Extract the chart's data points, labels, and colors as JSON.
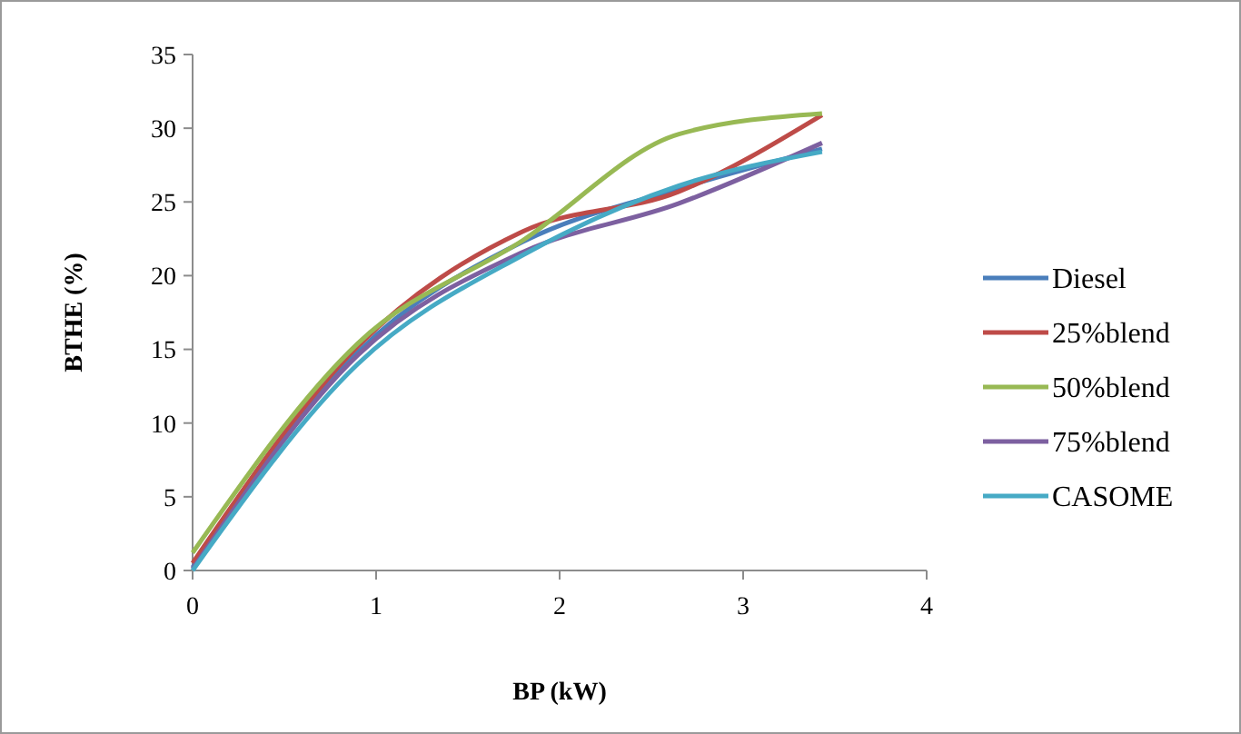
{
  "chart_data": {
    "type": "line",
    "xlabel": "BP (kW)",
    "ylabel": "BTHE (%)",
    "x": [
      0,
      0.9,
      1.8,
      2.65,
      3.43
    ],
    "xlim": [
      0,
      4
    ],
    "xticks": [
      0,
      1,
      2,
      3,
      4
    ],
    "ylim": [
      0,
      35
    ],
    "yticks": [
      0,
      5,
      10,
      15,
      20,
      25,
      30,
      35
    ],
    "grid": false,
    "legend": "right",
    "marker": "none",
    "series": [
      {
        "name": "Diesel",
        "color": "#4a7ebb",
        "values": [
          0.2,
          14.8,
          22.3,
          25.9,
          28.6
        ]
      },
      {
        "name": "25%blend",
        "color": "#be4b48",
        "values": [
          0.5,
          15.2,
          23.0,
          25.7,
          30.9
        ]
      },
      {
        "name": "50%blend",
        "color": "#98b954",
        "values": [
          1.2,
          15.4,
          22.4,
          29.6,
          31.0
        ]
      },
      {
        "name": "75%blend",
        "color": "#7d60a0",
        "values": [
          0.1,
          14.6,
          21.6,
          24.9,
          29.0
        ]
      },
      {
        "name": "CASOME",
        "color": "#46aac5",
        "values": [
          0,
          14.0,
          21.4,
          26.1,
          28.4
        ]
      }
    ]
  }
}
